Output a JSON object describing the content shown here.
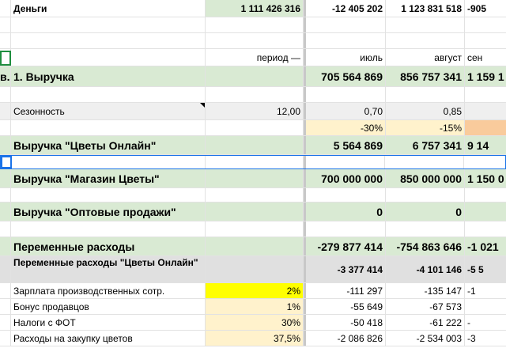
{
  "rows": [
    {
      "id": "money",
      "cls": "bold",
      "h": 22,
      "c0": "",
      "c1": "Деньги",
      "c2": "1 111 426 316",
      "c2bg": "bg-green",
      "c3": "-12 405 202",
      "c4": "1 123 831 518",
      "c5": "-905"
    },
    {
      "id": "blank1",
      "cls": "",
      "h": 20,
      "c0": "",
      "c1": "",
      "c2": "",
      "c3": "",
      "c4": "",
      "c5": ""
    },
    {
      "id": "blank2",
      "cls": "",
      "h": 20,
      "c0": "",
      "c1": "",
      "c2": "",
      "c3": "",
      "c4": "",
      "c5": ""
    },
    {
      "id": "period",
      "cls": "",
      "h": 22,
      "c0": "",
      "c1": "",
      "c2": "период —",
      "c3": "июль",
      "c4": "август",
      "c5": "сен"
    },
    {
      "id": "revenue",
      "cls": "green bold big",
      "h": 26,
      "c0": "в.",
      "c1": "1. Выручка",
      "c2": "",
      "c3": "705 564 869",
      "c4": "856 757 341",
      "c5": "1 159 1"
    },
    {
      "id": "blank3",
      "cls": "",
      "h": 20,
      "c0": "",
      "c1": "",
      "c2": "",
      "c3": "",
      "c4": "",
      "c5": ""
    },
    {
      "id": "season",
      "cls": "lightgray",
      "h": 22,
      "c0": "",
      "c1": "Сезонность",
      "c2": "12,00",
      "c3": "0,70",
      "c4": "0,85",
      "c5": ""
    },
    {
      "id": "pct",
      "cls": "",
      "h": 20,
      "c0": "",
      "c1": "",
      "c2": "",
      "c3": "-30%",
      "c3bg": "bg-lightyellow",
      "c4": "-15%",
      "c4bg": "bg-lightyellow",
      "c5": "",
      "c5bg": "bg-deeporange"
    },
    {
      "id": "rev_online",
      "cls": "green bold big",
      "h": 24,
      "c0": "",
      "c1": "Выручка \"Цветы Онлайн\"",
      "c2": "",
      "c3": "5 564 869",
      "c4": "6 757 341",
      "c5": "9 14"
    },
    {
      "id": "selected",
      "cls": "",
      "h": 18,
      "c0": "",
      "c1": "",
      "c2": "",
      "c3": "",
      "c4": "",
      "c5": ""
    },
    {
      "id": "rev_shop",
      "cls": "green bold big",
      "h": 24,
      "c0": "",
      "c1": "Выручка \"Магазин Цветы\"",
      "c2": "",
      "c3": "700 000 000",
      "c4": "850 000 000",
      "c5": "1 150 0"
    },
    {
      "id": "blank4",
      "cls": "",
      "h": 18,
      "c0": "",
      "c1": "",
      "c2": "",
      "c3": "",
      "c4": "",
      "c5": ""
    },
    {
      "id": "rev_wholesale",
      "cls": "green bold big",
      "h": 24,
      "c0": "",
      "c1": "Выручка \"Оптовые продажи\"",
      "c2": "",
      "c3": "0",
      "c4": "0",
      "c5": ""
    },
    {
      "id": "blank5",
      "cls": "",
      "h": 20,
      "c0": "",
      "c1": "",
      "c2": "",
      "c3": "",
      "c4": "",
      "c5": ""
    },
    {
      "id": "var_costs",
      "cls": "green bold big",
      "h": 24,
      "c0": "",
      "c1": "Переменные расходы",
      "c2": "",
      "c3": "-279 877 414",
      "c4": "-754 863 646",
      "c5": "-1 021"
    },
    {
      "id": "var_costs_online",
      "cls": "gray bold",
      "h": 34,
      "c0": "",
      "c1": "Переменные расходы \"Цветы Онлайн\"",
      "c1wrap": true,
      "c2": "",
      "c3": "-3 377 414",
      "c4": "-4 101 146",
      "c5": "-5 5"
    },
    {
      "id": "salary",
      "cls": "",
      "h": 20,
      "c0": "",
      "c1": "Зарплата производственных сотр.",
      "c2": "2%",
      "c2bg": "bg-yellow",
      "c3": "-111 297",
      "c4": "-135 147",
      "c5": "-1"
    },
    {
      "id": "bonus",
      "cls": "",
      "h": 20,
      "c0": "",
      "c1": "Бонус продавцов",
      "c2": "1%",
      "c2bg": "bg-lightyellow",
      "c3": "-55 649",
      "c4": "-67 573",
      "c5": ""
    },
    {
      "id": "taxes",
      "cls": "",
      "h": 20,
      "c0": "",
      "c1": "Налоги с ФОТ",
      "c2": "30%",
      "c2bg": "bg-lightyellow",
      "c3": "-50 418",
      "c4": "-61 222",
      "c5": "-"
    },
    {
      "id": "flowers",
      "cls": "",
      "h": 20,
      "c0": "",
      "c1": "Расходы на закупку цветов",
      "c2": "37,5%",
      "c2bg": "bg-lightyellow",
      "c3": "-2 086 826",
      "c4": "-2 534 003",
      "c5": "-3"
    }
  ]
}
